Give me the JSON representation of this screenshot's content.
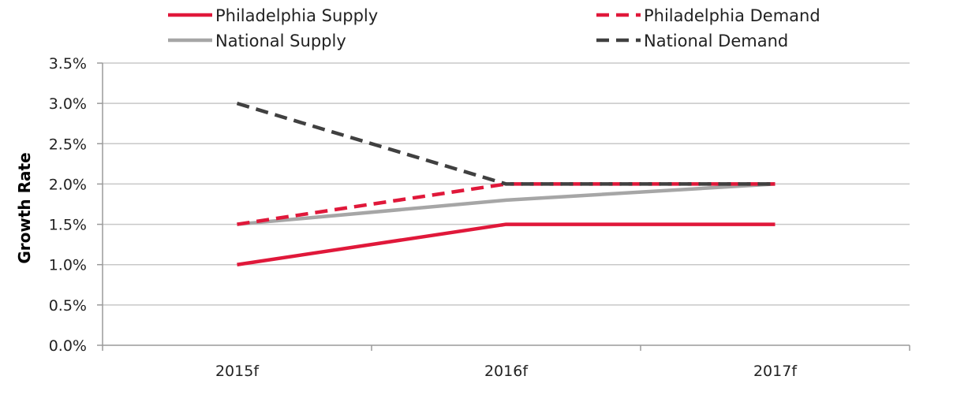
{
  "chart_data": {
    "type": "line",
    "categories": [
      "2015f",
      "2016f",
      "2017f"
    ],
    "series": [
      {
        "name": "Philadelphia Supply",
        "values": [
          1.0,
          1.5,
          1.5
        ],
        "color": "#e0183a",
        "dash": "solid"
      },
      {
        "name": "National Supply",
        "values": [
          1.5,
          1.8,
          2.0
        ],
        "color": "#a6a6a6",
        "dash": "solid"
      },
      {
        "name": "Philadelphia Demand",
        "values": [
          1.5,
          2.0,
          2.0
        ],
        "color": "#e0183a",
        "dash": "dashed"
      },
      {
        "name": "National Demand",
        "values": [
          3.0,
          2.0,
          2.0
        ],
        "color": "#404040",
        "dash": "dashed"
      }
    ],
    "ylabel": "Growth Rate",
    "ylim": [
      0,
      3.5
    ],
    "yticks": [
      "0.0%",
      "0.5%",
      "1.0%",
      "1.5%",
      "2.0%",
      "2.5%",
      "3.0%",
      "3.5%"
    ],
    "grid": true,
    "legend_position": "top"
  }
}
